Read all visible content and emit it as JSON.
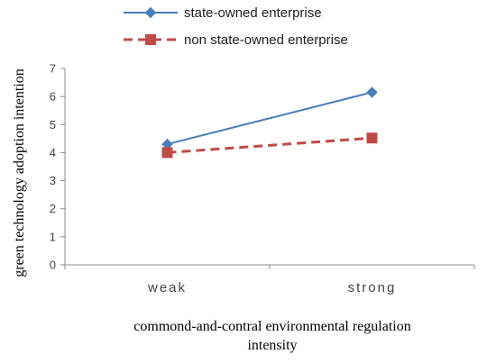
{
  "chart_data": {
    "type": "line",
    "categories": [
      "weak",
      "strong"
    ],
    "series": [
      {
        "name": "state-owned enterprise",
        "values": [
          4.3,
          6.15
        ],
        "color": "#4a7ebb",
        "marker": "diamond",
        "dash": "solid"
      },
      {
        "name": "non state-owned enterprise",
        "values": [
          4.0,
          4.52
        ],
        "color": "#be4b48",
        "marker": "square",
        "dash": "dashed"
      }
    ],
    "ylim": [
      0,
      7
    ],
    "yticks": [
      0,
      1,
      2,
      3,
      4,
      5,
      6,
      7
    ],
    "ylabel": "green technology adoption intention",
    "xlabel_line1": "commond-and-contral environmental regulation",
    "xlabel_line2": "intensity",
    "grid": false,
    "legend_position": "top"
  }
}
